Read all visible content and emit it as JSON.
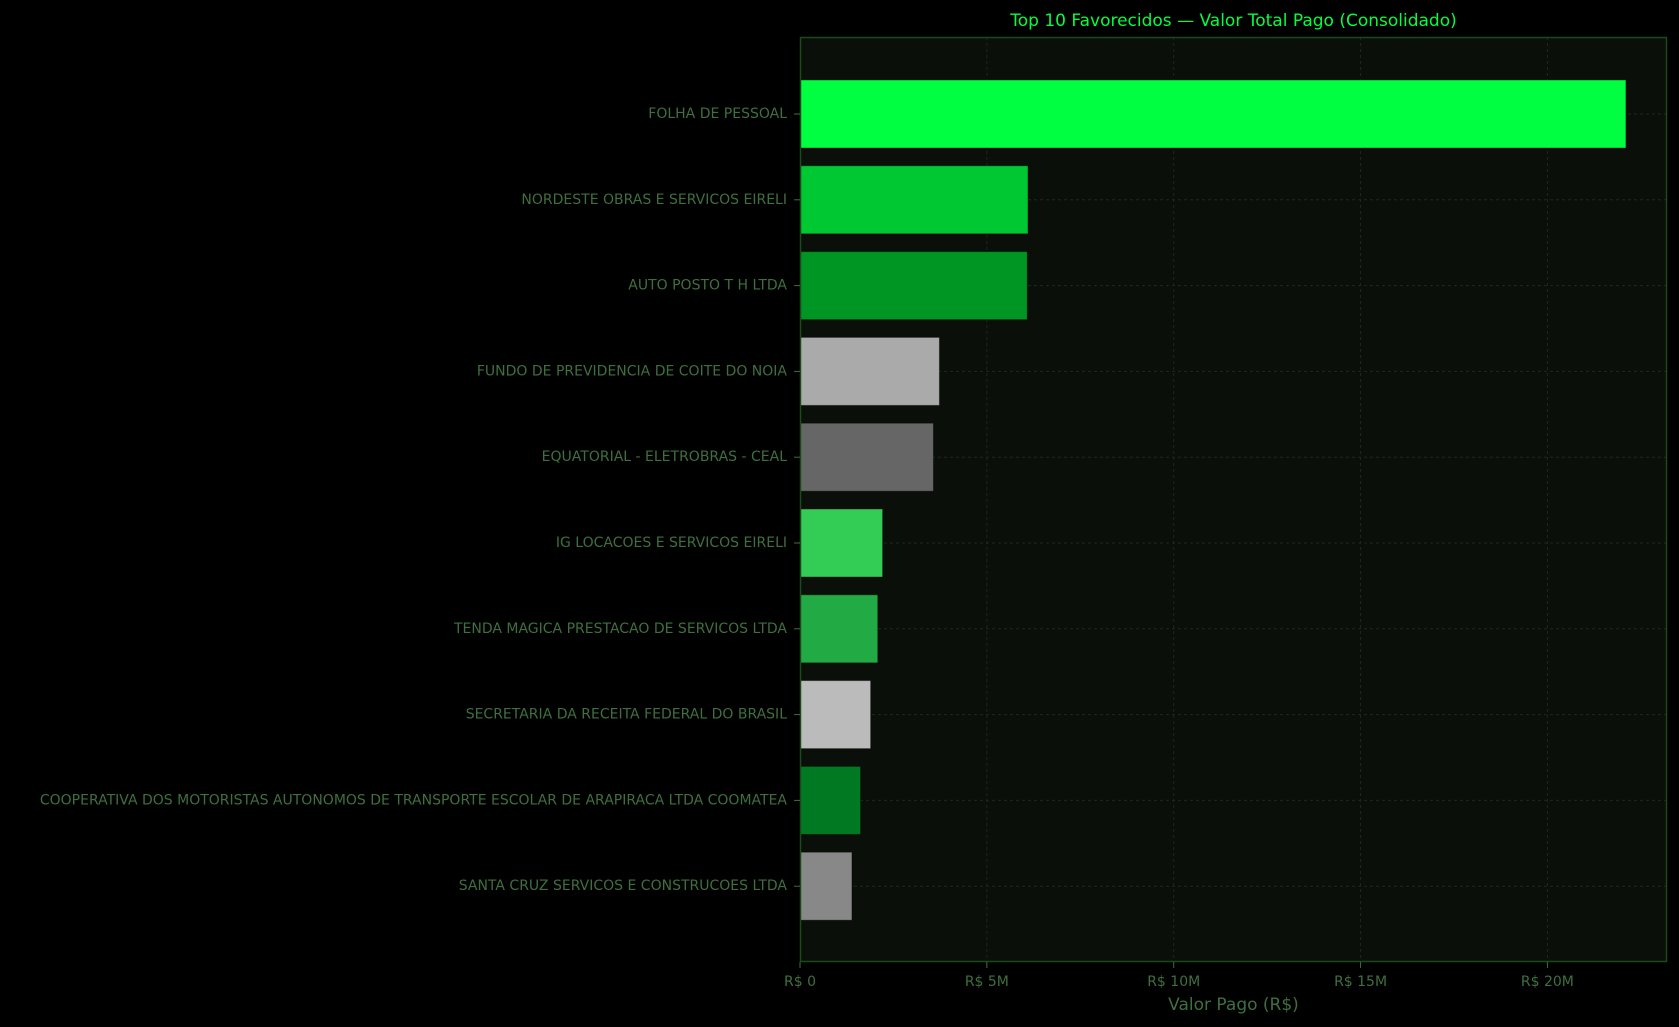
{
  "chart_data": {
    "type": "bar",
    "orientation": "horizontal",
    "title": "Top 10 Favorecidos — Valor Total Pago (Consolidado)",
    "xlabel": "Valor Pago (R$)",
    "ylabel": "",
    "xlim": [
      0,
      23200000
    ],
    "x_ticks": [
      {
        "value": 0,
        "label": "R$ 0"
      },
      {
        "value": 5000000,
        "label": "R$ 5M"
      },
      {
        "value": 10000000,
        "label": "R$ 10M"
      },
      {
        "value": 15000000,
        "label": "R$ 15M"
      },
      {
        "value": 20000000,
        "label": "R$ 20M"
      }
    ],
    "grid": true,
    "categories": [
      "FOLHA DE PESSOAL",
      "NORDESTE OBRAS E SERVICOS EIRELI",
      "AUTO POSTO T H LTDA",
      "FUNDO DE PREVIDENCIA DE COITE DO NOIA ",
      "EQUATORIAL - ELETROBRAS - CEAL",
      "IG LOCACOES E SERVICOS EIRELI",
      "TENDA MAGICA PRESTACAO DE SERVICOS LTDA",
      "SECRETARIA DA RECEITA FEDERAL DO BRASIL",
      "COOPERATIVA DOS MOTORISTAS AUTONOMOS DE TRANSPORTE ESCOLAR DE ARAPIRACA LTDA COOMATEA",
      "SANTA CRUZ SERVICOS E CONSTRUCOES LTDA"
    ],
    "values": [
      22100000,
      6100000,
      6080000,
      3730000,
      3570000,
      2210000,
      2080000,
      1890000,
      1620000,
      1390000
    ],
    "bar_colors": [
      "#00ff41",
      "#00c832",
      "#009623",
      "#aaaaaa",
      "#666666",
      "#33cc55",
      "#22aa44",
      "#bbbbbb",
      "#007a22",
      "#888888"
    ],
    "colors": {
      "background": "#000000",
      "plot_background": "#0a0f0a",
      "title": "#00ff41",
      "tick_labels": "#3f6f3f",
      "axis_label": "#3f6f3f",
      "spine": "#1a4a1a",
      "grid": "#1a2a1a"
    }
  }
}
